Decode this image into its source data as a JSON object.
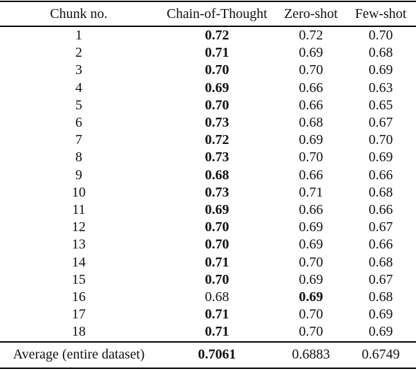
{
  "table": {
    "headers": [
      "Chunk no.",
      "Chain-of-Thought",
      "Zero-shot",
      "Few-shot"
    ],
    "rows": [
      {
        "chunk": "1",
        "values": [
          "0.72",
          "0.72",
          "0.70"
        ],
        "bold": 0
      },
      {
        "chunk": "2",
        "values": [
          "0.71",
          "0.69",
          "0.68"
        ],
        "bold": 0
      },
      {
        "chunk": "3",
        "values": [
          "0.70",
          "0.70",
          "0.69"
        ],
        "bold": 0
      },
      {
        "chunk": "4",
        "values": [
          "0.69",
          "0.66",
          "0.63"
        ],
        "bold": 0
      },
      {
        "chunk": "5",
        "values": [
          "0.70",
          "0.66",
          "0.65"
        ],
        "bold": 0
      },
      {
        "chunk": "6",
        "values": [
          "0.73",
          "0.68",
          "0.67"
        ],
        "bold": 0
      },
      {
        "chunk": "7",
        "values": [
          "0.72",
          "0.69",
          "0.70"
        ],
        "bold": 0
      },
      {
        "chunk": "8",
        "values": [
          "0.73",
          "0.70",
          "0.69"
        ],
        "bold": 0
      },
      {
        "chunk": "9",
        "values": [
          "0.68",
          "0.66",
          "0.66"
        ],
        "bold": 0
      },
      {
        "chunk": "10",
        "values": [
          "0.73",
          "0.71",
          "0.68"
        ],
        "bold": 0
      },
      {
        "chunk": "11",
        "values": [
          "0.69",
          "0.66",
          "0.66"
        ],
        "bold": 0
      },
      {
        "chunk": "12",
        "values": [
          "0.70",
          "0.69",
          "0.67"
        ],
        "bold": 0
      },
      {
        "chunk": "13",
        "values": [
          "0.70",
          "0.69",
          "0.66"
        ],
        "bold": 0
      },
      {
        "chunk": "14",
        "values": [
          "0.71",
          "0.70",
          "0.68"
        ],
        "bold": 0
      },
      {
        "chunk": "15",
        "values": [
          "0.70",
          "0.69",
          "0.67"
        ],
        "bold": 0
      },
      {
        "chunk": "16",
        "values": [
          "0.68",
          "0.69",
          "0.68"
        ],
        "bold": 1
      },
      {
        "chunk": "17",
        "values": [
          "0.71",
          "0.70",
          "0.69"
        ],
        "bold": 0
      },
      {
        "chunk": "18",
        "values": [
          "0.71",
          "0.70",
          "0.69"
        ],
        "bold": 0
      }
    ],
    "average": {
      "label": "Average (entire dataset)",
      "values": [
        "0.7061",
        "0.6883",
        "0.6749"
      ],
      "bold": 0
    },
    "text_color": "#111111",
    "rule_color": "#000000",
    "background_color": "#ffffff"
  }
}
